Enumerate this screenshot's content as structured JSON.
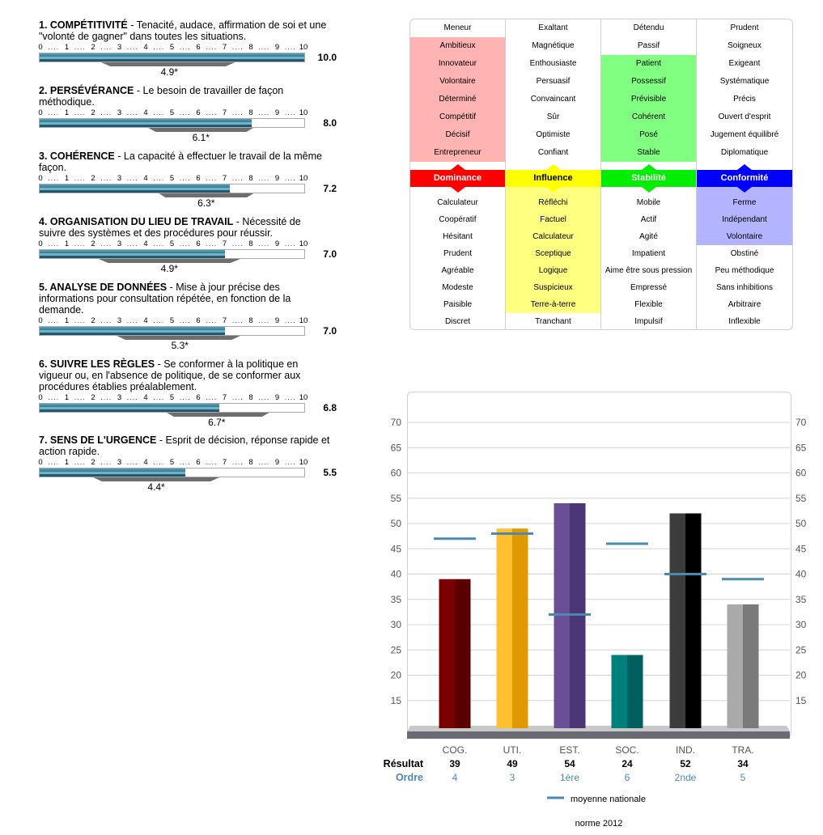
{
  "competencies": {
    "scale_ticks": [
      "0",
      "1",
      "2",
      "3",
      "4",
      "5",
      "6",
      "7",
      "8",
      "9",
      "10"
    ],
    "items": [
      {
        "num": "1.",
        "title": "COMPÉTITIVITÉ",
        "desc": " - Tenacité, audace, affirmation de soi et une \"volonté de gagner\" dans toutes les situations.",
        "score": 10.0,
        "score_label": "10.0",
        "norm": 4.9,
        "norm_label": "4.9*",
        "band": [
          2.3,
          7.4
        ]
      },
      {
        "num": "2.",
        "title": "PERSÉVÉRANCE",
        "desc": " - Le besoin de travailler de façon méthodique.",
        "score": 8.0,
        "score_label": "8.0",
        "norm": 6.1,
        "norm_label": "6.1*",
        "band": [
          4.1,
          8.1
        ]
      },
      {
        "num": "3.",
        "title": "COHÉRENCE",
        "desc": " - La capacité à effectuer le travail de la même façon.",
        "score": 7.2,
        "score_label": "7.2",
        "norm": 6.3,
        "norm_label": "6.3*",
        "band": [
          4.5,
          8.1
        ]
      },
      {
        "num": "4.",
        "title": "ORGANISATION DU LIEU DE TRAVAIL",
        "desc": " - Nécessité de suivre des systèmes et des procédures pour réussir.",
        "score": 7.0,
        "score_label": "7.0",
        "norm": 4.9,
        "norm_label": "4.9*",
        "band": [
          2.2,
          7.6
        ]
      },
      {
        "num": "5.",
        "title": "ANALYSE DE DONNÉES",
        "desc": " - Mise à jour précise des informations pour consultation répétée, en fonction de la demande.",
        "score": 7.0,
        "score_label": "7.0",
        "norm": 5.3,
        "norm_label": "5.3*",
        "band": [
          2.9,
          7.6
        ]
      },
      {
        "num": "6.",
        "title": "SUIVRE LES RÈGLES",
        "desc": " - Se conformer à la politique en vigueur ou, en l'absence de politique, de se conformer aux procédures établies préalablement.",
        "score": 6.8,
        "score_label": "6.8",
        "norm": 6.7,
        "norm_label": "6.7*",
        "band": [
          4.8,
          8.7
        ]
      },
      {
        "num": "7.",
        "title": "SENS DE L'URGENCE",
        "desc": " - Esprit de décision, réponse rapide et action rapide.",
        "score": 5.5,
        "score_label": "5.5",
        "norm": 4.4,
        "norm_label": "4.4*",
        "band": [
          2.0,
          6.8
        ]
      }
    ]
  },
  "disc": {
    "columns": [
      {
        "header": "Dominance",
        "color": "#ff0000",
        "highlight_color": "#ffb3b3",
        "highlight_side": "top",
        "highlight_from": 1,
        "highlight_to": 7,
        "top": [
          "Meneur",
          "Ambitieux",
          "Innovateur",
          "Volontaire",
          "Déterminé",
          "Compétitif",
          "Décisif",
          "Entrepreneur"
        ],
        "bottom": [
          "Calculateur",
          "Coopératif",
          "Hésitant",
          "Prudent",
          "Agréable",
          "Modeste",
          "Paisible",
          "Discret"
        ]
      },
      {
        "header": "Influence",
        "color": "#ffff00",
        "highlight_color": "#ffff80",
        "highlight_side": "bottom",
        "highlight_from": 0,
        "highlight_to": 6,
        "top": [
          "Exaltant",
          "Magnétique",
          "Enthousiaste",
          "Persuasif",
          "Convaincant",
          "Sûr",
          "Optimiste",
          "Confiant"
        ],
        "bottom": [
          "Réfléchi",
          "Factuel",
          "Calculateur",
          "Sceptique",
          "Logique",
          "Suspicieux",
          "Terre-à-terre",
          "Tranchant"
        ]
      },
      {
        "header": "Stabilité",
        "color": "#00ee00",
        "highlight_color": "#80ff80",
        "highlight_side": "top",
        "highlight_from": 2,
        "highlight_to": 7,
        "top": [
          "Détendu",
          "Passif",
          "Patient",
          "Possessif",
          "Prévisible",
          "Cohérent",
          "Posé",
          "Stable"
        ],
        "bottom": [
          "Mobile",
          "Actif",
          "Agité",
          "Impatient",
          "Aime être sous pression",
          "Empressé",
          "Flexible",
          "Impulsif"
        ]
      },
      {
        "header": "Conformité",
        "color": "#0000ff",
        "highlight_color": "#b3b3ff",
        "highlight_side": "bottom",
        "highlight_from": 0,
        "highlight_to": 2,
        "top": [
          "Prudent",
          "Soigneux",
          "Exigeant",
          "Systématique",
          "Précis",
          "Ouvert d'esprit",
          "Jugement équilibré",
          "Diplomatique"
        ],
        "bottom": [
          "Ferme",
          "Indépendant",
          "Volontaire",
          "Obstiné",
          "Peu méthodique",
          "Sans inhibitions",
          "Arbitraire",
          "Inflexible"
        ]
      }
    ]
  },
  "chart_data": {
    "type": "bar",
    "categories": [
      "COG.",
      "UTI.",
      "EST.",
      "SOC.",
      "IND.",
      "TRA."
    ],
    "values": [
      39,
      49,
      54,
      24,
      52,
      34
    ],
    "value_labels": [
      "39",
      "49",
      "54",
      "24",
      "52",
      "34"
    ],
    "national_average": [
      47,
      48,
      32,
      46,
      40,
      39
    ],
    "order": [
      "4",
      "3",
      "1ère",
      "6",
      "2nde",
      "5"
    ],
    "bar_colors": [
      [
        "#7a0000",
        "#5a0000"
      ],
      [
        "#ffc030",
        "#e09a00"
      ],
      [
        "#6a4f98",
        "#4c3678"
      ],
      [
        "#00807a",
        "#006060"
      ],
      [
        "#3c3c3c",
        "#000000"
      ],
      [
        "#aaaaaa",
        "#7a7a7a"
      ]
    ],
    "avg_color": "#4a8ab0",
    "ylim": [
      10,
      70
    ],
    "yticks": [
      "15",
      "20",
      "25",
      "30",
      "35",
      "40",
      "45",
      "50",
      "55",
      "60",
      "65",
      "70"
    ],
    "row_result_label": "Résultat",
    "row_order_label": "Ordre",
    "legend_label": "moyenne nationale",
    "norm_label": "norme 2012",
    "grid": true
  }
}
